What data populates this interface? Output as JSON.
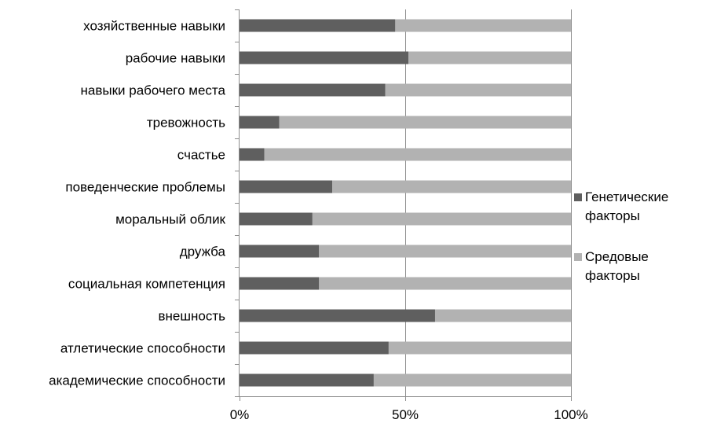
{
  "chart_data": {
    "type": "bar",
    "orientation": "horizontal",
    "stacked": "percent",
    "categories": [
      "хозяйственные навыки",
      "рабочие навыки",
      "навыки рабочего места",
      "тревожность",
      "счастье",
      "поведенческие проблемы",
      "моральный облик",
      "дружба",
      "социальная компетенция",
      "внешность",
      "атлетические способности",
      "академические способности"
    ],
    "series": [
      {
        "name": "Генетические факторы",
        "color": "#5f5f5f",
        "values": [
          47,
          51,
          44,
          12,
          7.5,
          28,
          22,
          24,
          24,
          59,
          45,
          40.5
        ]
      },
      {
        "name": "Средовые факторы",
        "color": "#b2b2b2",
        "values": [
          53,
          49,
          56,
          88,
          92.5,
          72,
          78,
          76,
          76,
          41,
          55,
          59.5
        ]
      }
    ],
    "xlim": [
      0,
      100
    ],
    "xticks": [
      "0%",
      "50%",
      "100%"
    ],
    "xlabel": "",
    "ylabel": "",
    "grid": "vertical",
    "legend": "right"
  }
}
